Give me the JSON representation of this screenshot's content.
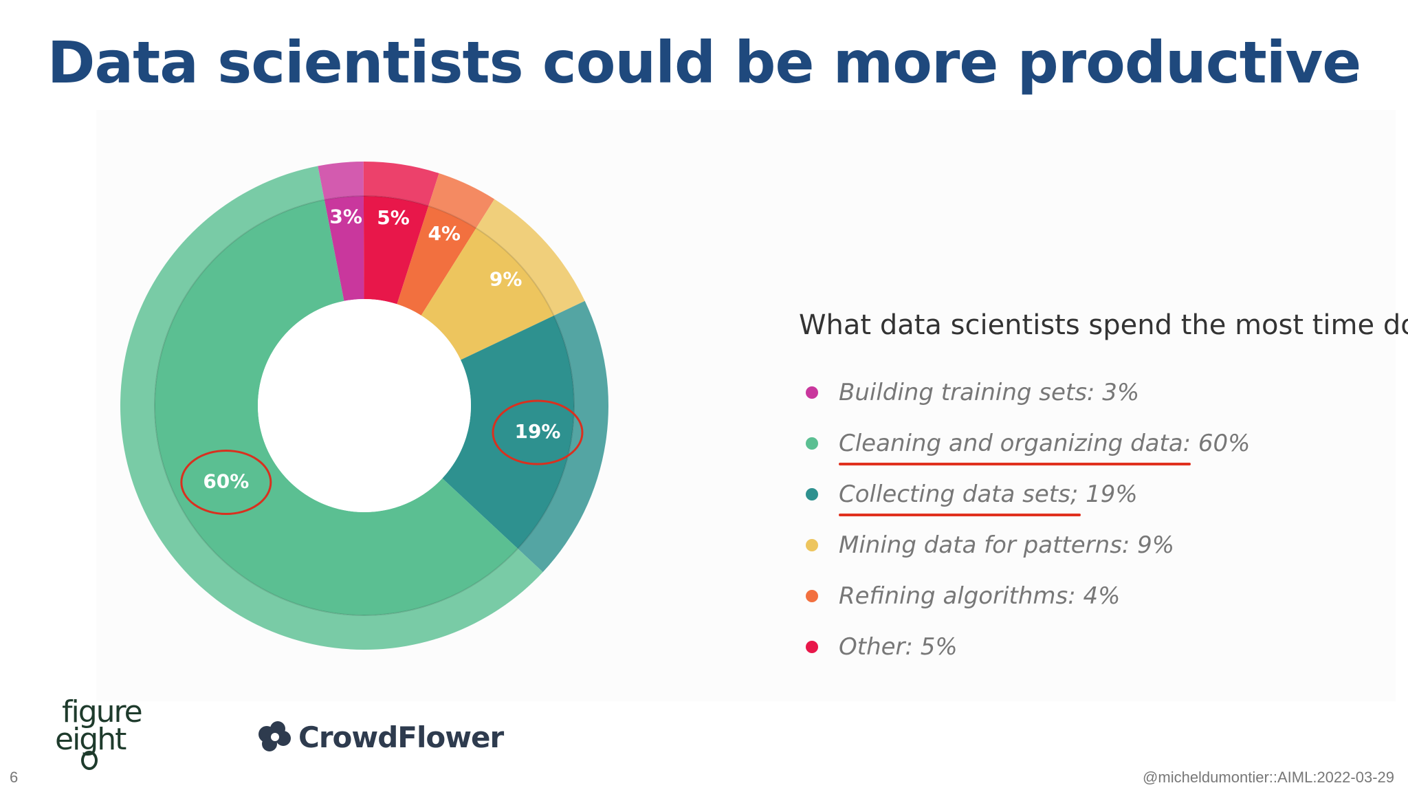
{
  "slide": {
    "title": "Data scientists could be more productive",
    "page_number": "6",
    "footer": "@micheldumontier::AIML:2022-03-29"
  },
  "logos": {
    "figure_eight_line1": "figure",
    "figure_eight_line2": "eight",
    "crowdflower": "CrowdFlower"
  },
  "chart_data": {
    "type": "pie",
    "donut": true,
    "title": "What data scientists spend the most time doing",
    "legend_position": "right",
    "slices": [
      {
        "label": "Building training sets",
        "value": 3,
        "color": "#c9379d"
      },
      {
        "label": "Other",
        "value": 5,
        "color": "#e8174a"
      },
      {
        "label": "Refining algorithms",
        "value": 4,
        "color": "#f2703f"
      },
      {
        "label": "Mining data for patterns",
        "value": 9,
        "color": "#edc55e"
      },
      {
        "label": "Collecting data sets",
        "value": 19,
        "color": "#2e918f"
      },
      {
        "label": "Cleaning and organizing data",
        "value": 60,
        "color": "#5bbf92"
      }
    ],
    "data_labels": [
      "3%",
      "5%",
      "4%",
      "9%",
      "19%",
      "60%"
    ],
    "highlighted": [
      "Cleaning and organizing data",
      "Collecting data sets"
    ],
    "annotation_color": "#d9301f"
  },
  "legend": [
    {
      "text": "Building training sets: 3%",
      "color": "#c9379d",
      "underline": false
    },
    {
      "text": "Cleaning and organizing data: 60%",
      "color": "#5bbf92",
      "underline": true
    },
    {
      "text": "Collecting data sets; 19%",
      "color": "#2e918f",
      "underline": true
    },
    {
      "text": "Mining data for patterns: 9%",
      "color": "#edc55e",
      "underline": false
    },
    {
      "text": "Refining algorithms: 4%",
      "color": "#f2703f",
      "underline": false
    },
    {
      "text": "Other: 5%",
      "color": "#e8174a",
      "underline": false
    }
  ]
}
